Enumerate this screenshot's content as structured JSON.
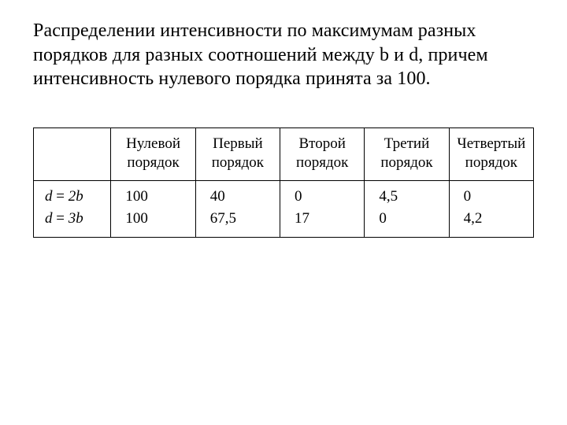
{
  "caption": "Распределении интенсивности по максимумам разных порядков для разных соотношений между b и d, причем интенсивность нулевого порядка принята за 100.",
  "table": {
    "columns": [
      "",
      "Нулевой порядок",
      "Первый порядок",
      "Второй порядок",
      "Третий порядок",
      "Четвертый порядок"
    ],
    "row_labels": [
      "d = 2b",
      "d = 3b"
    ],
    "rows": [
      [
        "100",
        "40",
        "0",
        "4,5",
        "0"
      ],
      [
        "100",
        "67,5",
        "17",
        "0",
        "4,2"
      ]
    ],
    "border_color": "#000000",
    "background": "#ffffff",
    "header_fontsize": 19,
    "cell_fontsize": 19,
    "caption_fontsize": 24
  }
}
